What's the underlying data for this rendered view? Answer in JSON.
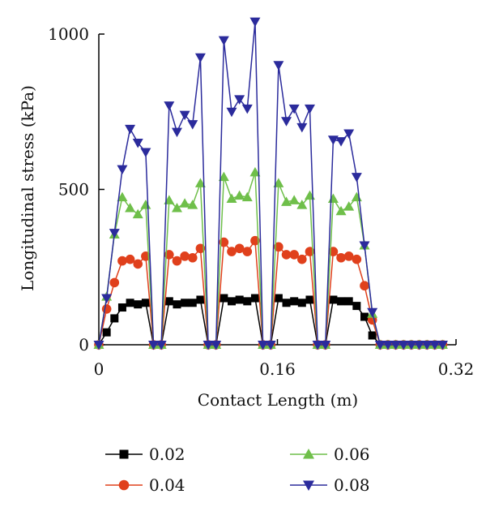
{
  "chart_data": {
    "type": "line",
    "title": "",
    "xlabel": "Contact Length (m)",
    "ylabel": "Longitudinal stress (kPa)",
    "xlim": [
      0,
      0.32
    ],
    "ylim": [
      0,
      1000
    ],
    "x_ticks": [
      "0",
      "0.16",
      "0.32"
    ],
    "y_ticks": [
      "0",
      "500",
      "1000"
    ],
    "grid": false,
    "legend_position": "bottom",
    "x": [
      0,
      0.007,
      0.014,
      0.021,
      0.028,
      0.035,
      0.042,
      0.049,
      0.056,
      0.063,
      0.07,
      0.077,
      0.084,
      0.091,
      0.098,
      0.105,
      0.112,
      0.119,
      0.126,
      0.133,
      0.14,
      0.147,
      0.154,
      0.161,
      0.168,
      0.175,
      0.182,
      0.189,
      0.196,
      0.203,
      0.21,
      0.217,
      0.224,
      0.231,
      0.238,
      0.245,
      0.252,
      0.259,
      0.266,
      0.273,
      0.28,
      0.287,
      0.294,
      0.301,
      0.308
    ],
    "series": [
      {
        "name": "0.02",
        "color": "#000000",
        "marker": "square",
        "values": [
          0,
          40,
          85,
          120,
          135,
          130,
          135,
          0,
          0,
          140,
          130,
          135,
          135,
          145,
          0,
          0,
          150,
          140,
          145,
          140,
          150,
          0,
          0,
          150,
          135,
          140,
          135,
          145,
          0,
          0,
          145,
          140,
          140,
          125,
          90,
          30,
          0,
          0,
          0,
          0,
          0,
          0,
          0,
          0,
          0
        ]
      },
      {
        "name": "0.04",
        "color": "#e0401c",
        "marker": "circle",
        "values": [
          0,
          115,
          200,
          270,
          275,
          260,
          285,
          0,
          0,
          290,
          270,
          285,
          280,
          310,
          0,
          0,
          330,
          300,
          310,
          300,
          335,
          0,
          0,
          315,
          290,
          290,
          275,
          300,
          0,
          0,
          300,
          280,
          285,
          275,
          190,
          80,
          0,
          0,
          0,
          0,
          0,
          0,
          0,
          0,
          0
        ]
      },
      {
        "name": "0.06",
        "color": "#6fbf4a",
        "marker": "triangle-up",
        "values": [
          0,
          155,
          355,
          475,
          440,
          420,
          450,
          0,
          0,
          465,
          440,
          455,
          450,
          520,
          0,
          0,
          540,
          470,
          480,
          475,
          555,
          0,
          0,
          520,
          460,
          465,
          450,
          480,
          0,
          0,
          470,
          430,
          445,
          475,
          320,
          100,
          0,
          0,
          0,
          0,
          0,
          0,
          0,
          0,
          0
        ]
      },
      {
        "name": "0.08",
        "color": "#2b2b9c",
        "marker": "triangle-down",
        "values": [
          0,
          150,
          360,
          565,
          695,
          650,
          620,
          0,
          0,
          770,
          685,
          740,
          710,
          925,
          0,
          0,
          980,
          750,
          790,
          760,
          1040,
          0,
          0,
          900,
          720,
          760,
          700,
          760,
          0,
          0,
          660,
          655,
          680,
          540,
          320,
          105,
          0,
          0,
          0,
          0,
          0,
          0,
          0,
          0,
          0
        ]
      }
    ]
  }
}
